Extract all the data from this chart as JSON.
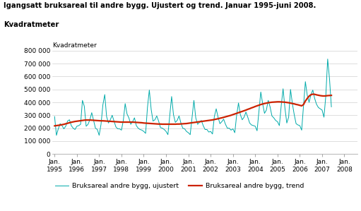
{
  "title_line1": "Igangsatt bruksareal til andre bygg. Ujustert og trend. Januar 1995-juni 2008.",
  "title_line2": "Kvadratmeter",
  "ylabel": "Kvadratmeter",
  "ylim": [
    0,
    800000
  ],
  "yticks": [
    0,
    100000,
    200000,
    300000,
    400000,
    500000,
    600000,
    700000,
    800000
  ],
  "ytick_labels": [
    "0",
    "100 000",
    "200 000",
    "300 000",
    "400 000",
    "500 000",
    "600 000",
    "700 000",
    "800 000"
  ],
  "xtick_years": [
    1995,
    1996,
    1997,
    1998,
    1999,
    2000,
    2001,
    2002,
    2003,
    2004,
    2005,
    2006,
    2007,
    2008
  ],
  "unadjusted_color": "#00AAAA",
  "trend_color": "#CC2200",
  "legend_unadjusted": "Bruksareal andre bygg, ujustert",
  "legend_trend": "Bruksareal andre bygg, trend",
  "background_color": "#ffffff",
  "unadjusted": [
    290000,
    145000,
    195000,
    235000,
    220000,
    195000,
    215000,
    255000,
    265000,
    220000,
    200000,
    190000,
    215000,
    220000,
    230000,
    415000,
    370000,
    215000,
    230000,
    265000,
    320000,
    260000,
    200000,
    190000,
    145000,
    230000,
    380000,
    460000,
    290000,
    240000,
    265000,
    300000,
    255000,
    210000,
    195000,
    195000,
    185000,
    260000,
    390000,
    310000,
    280000,
    230000,
    250000,
    280000,
    220000,
    200000,
    190000,
    185000,
    175000,
    160000,
    360000,
    495000,
    345000,
    255000,
    265000,
    295000,
    255000,
    205000,
    200000,
    190000,
    175000,
    150000,
    300000,
    445000,
    305000,
    245000,
    260000,
    295000,
    240000,
    200000,
    195000,
    175000,
    165000,
    150000,
    285000,
    415000,
    280000,
    230000,
    245000,
    260000,
    220000,
    190000,
    190000,
    170000,
    175000,
    155000,
    290000,
    350000,
    285000,
    235000,
    250000,
    270000,
    230000,
    200000,
    200000,
    185000,
    195000,
    165000,
    300000,
    395000,
    305000,
    265000,
    285000,
    325000,
    285000,
    240000,
    225000,
    220000,
    215000,
    180000,
    330000,
    480000,
    390000,
    315000,
    340000,
    415000,
    365000,
    295000,
    280000,
    260000,
    250000,
    220000,
    375000,
    505000,
    355000,
    240000,
    285000,
    500000,
    390000,
    305000,
    235000,
    225000,
    220000,
    185000,
    370000,
    560000,
    455000,
    400000,
    460000,
    495000,
    430000,
    385000,
    360000,
    350000,
    340000,
    285000,
    450000,
    735000,
    580000,
    365000
  ],
  "trend": [
    218000,
    220000,
    222000,
    224000,
    227000,
    230000,
    234000,
    238000,
    242000,
    246000,
    249000,
    252000,
    254000,
    256000,
    258000,
    260000,
    262000,
    263000,
    263000,
    263000,
    262000,
    261000,
    260000,
    259000,
    258000,
    257000,
    257000,
    256000,
    255000,
    254000,
    253000,
    252000,
    251000,
    250000,
    249000,
    248000,
    247000,
    247000,
    247000,
    247000,
    247000,
    247000,
    247000,
    246000,
    245000,
    244000,
    243000,
    242000,
    240000,
    239000,
    238000,
    237000,
    236000,
    235000,
    234000,
    233000,
    232000,
    232000,
    231000,
    231000,
    231000,
    231000,
    231000,
    231000,
    231000,
    231000,
    232000,
    232000,
    233000,
    234000,
    235000,
    236000,
    238000,
    240000,
    242000,
    244000,
    246000,
    248000,
    250000,
    252000,
    254000,
    256000,
    258000,
    260000,
    262000,
    264000,
    267000,
    270000,
    273000,
    277000,
    280000,
    284000,
    288000,
    292000,
    296000,
    300000,
    305000,
    310000,
    315000,
    320000,
    325000,
    330000,
    335000,
    340000,
    346000,
    351000,
    357000,
    362000,
    368000,
    373000,
    378000,
    383000,
    387000,
    391000,
    394000,
    397000,
    399000,
    401000,
    402000,
    403000,
    404000,
    404000,
    403000,
    402000,
    401000,
    399000,
    397000,
    394000,
    391000,
    388000,
    384000,
    381000,
    377000,
    373000,
    383000,
    410000,
    430000,
    448000,
    459000,
    463000,
    462000,
    458000,
    455000,
    452000,
    450000,
    449000,
    450000,
    452000,
    453000,
    454000
  ]
}
